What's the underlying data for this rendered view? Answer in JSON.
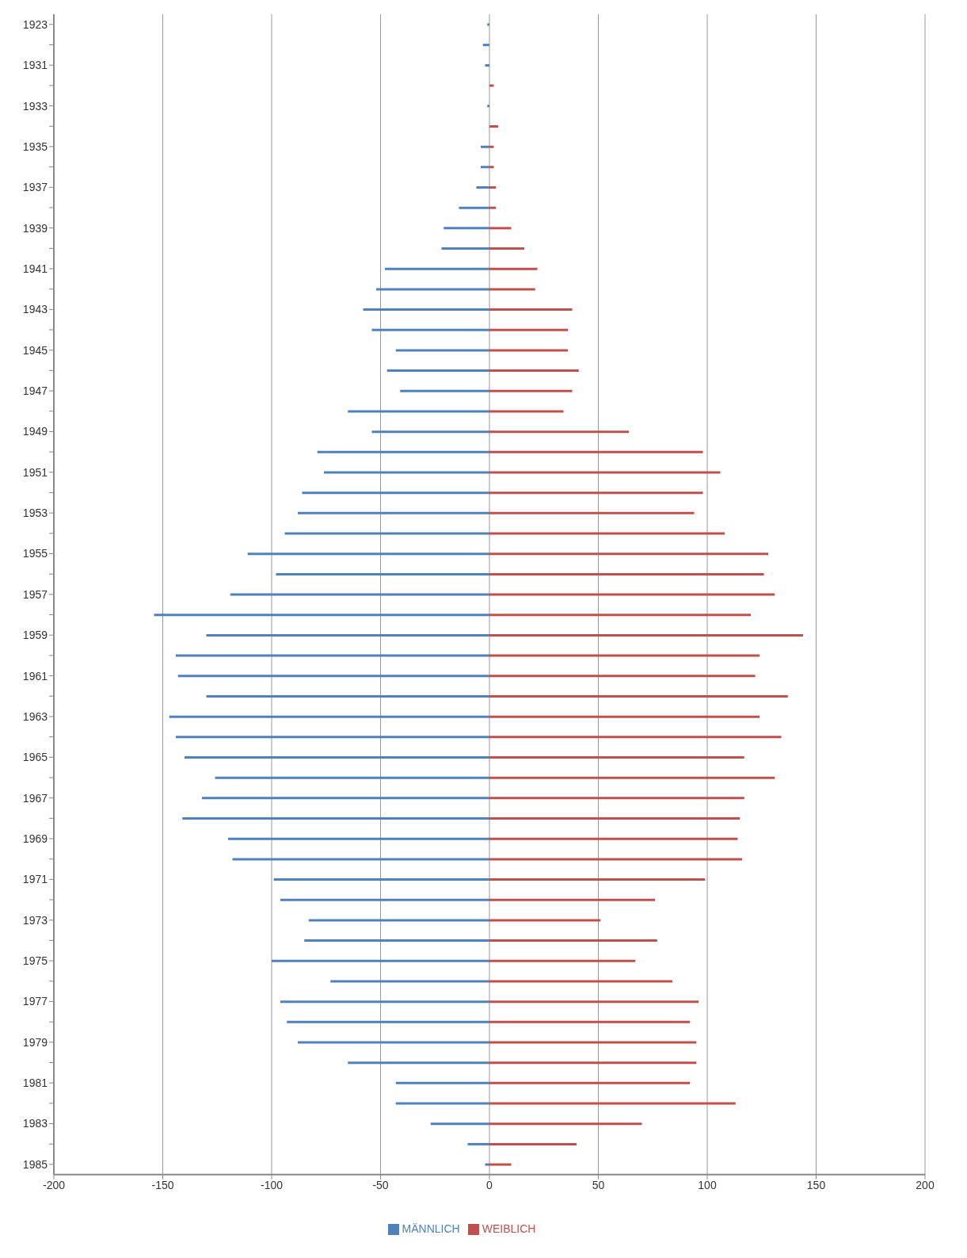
{
  "chart_data": {
    "type": "bar",
    "orientation": "horizontal",
    "stacked": true,
    "categories": [
      "1923",
      null,
      "1931",
      null,
      "1933",
      null,
      "1935",
      null,
      "1937",
      null,
      "1939",
      null,
      "1941",
      null,
      "1943",
      null,
      "1945",
      null,
      "1947",
      null,
      "1949",
      null,
      "1951",
      null,
      "1953",
      null,
      "1955",
      null,
      "1957",
      null,
      "1959",
      null,
      "1961",
      null,
      "1963",
      null,
      "1965",
      null,
      "1967",
      null,
      "1969",
      null,
      "1971",
      null,
      "1973",
      null,
      "1975",
      null,
      "1977",
      null,
      "1979",
      null,
      "1981",
      null,
      "1983",
      null,
      "1985"
    ],
    "series": [
      {
        "name": "MÄNNLICH",
        "color": "#4f81bd",
        "values": [
          -1,
          -3,
          -2,
          0,
          -1,
          0,
          -4,
          -4,
          -6,
          -14,
          -21,
          -22,
          -48,
          -52,
          -58,
          -54,
          -43,
          -47,
          -41,
          -65,
          -54,
          -79,
          -76,
          -86,
          -88,
          -94,
          -111,
          -98,
          -119,
          -154,
          -130,
          -144,
          -143,
          -130,
          -147,
          -144,
          -140,
          -126,
          -132,
          -141,
          -120,
          -118,
          -99,
          -96,
          -83,
          -85,
          -100,
          -73,
          -96,
          -93,
          -88,
          -65,
          -43,
          -43,
          -27,
          -10,
          -2
        ]
      },
      {
        "name": "WEIBLICH",
        "color": "#c0504d",
        "values": [
          0,
          0,
          0,
          2,
          0,
          4,
          2,
          2,
          3,
          3,
          10,
          16,
          22,
          21,
          38,
          36,
          36,
          41,
          38,
          34,
          64,
          98,
          106,
          98,
          94,
          108,
          128,
          126,
          131,
          120,
          144,
          124,
          122,
          137,
          124,
          134,
          117,
          131,
          117,
          115,
          114,
          116,
          99,
          76,
          51,
          77,
          67,
          84,
          96,
          92,
          95,
          95,
          92,
          113,
          70,
          40,
          10
        ]
      }
    ],
    "xlim": [
      -200,
      200
    ],
    "xticks": [
      -200,
      -150,
      -100,
      -50,
      0,
      50,
      100,
      150,
      200
    ],
    "grid": "x",
    "legend": "bottom"
  }
}
